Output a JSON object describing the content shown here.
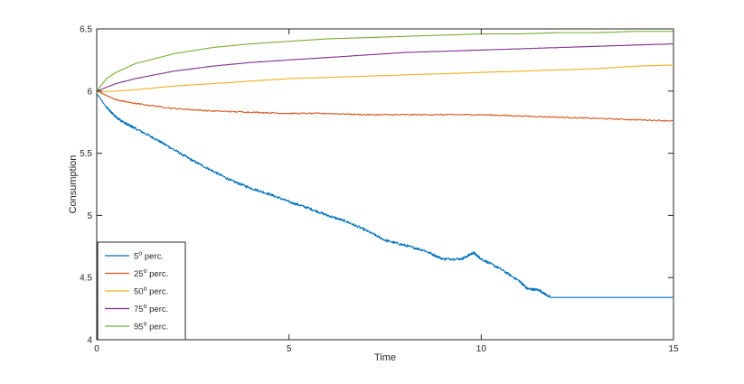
{
  "chart_data": {
    "type": "line",
    "title": "",
    "xlabel": "Time",
    "ylabel": "Consumption",
    "xlim": [
      0,
      15
    ],
    "ylim": [
      4,
      6.5
    ],
    "x_ticks": [
      "0",
      "5",
      "10",
      "15"
    ],
    "y_ticks": [
      "4",
      "4.5",
      "5",
      "5.5",
      "6",
      "6.5"
    ],
    "grid": false,
    "legend_position": "bottom-left",
    "series": [
      {
        "name": "5",
        "name_suffix": " perc.",
        "superscript": "o",
        "color": "#0072BD",
        "x": [
          0,
          0.25,
          0.5,
          0.75,
          1,
          1.5,
          2,
          2.5,
          3,
          3.5,
          4,
          4.5,
          5,
          5.5,
          6,
          6.5,
          7,
          7.5,
          8,
          8.5,
          9,
          9.5,
          9.8,
          10,
          10.5,
          11,
          11.2,
          11.5,
          11.8,
          12,
          13,
          14,
          15
        ],
        "y": [
          5.98,
          5.87,
          5.79,
          5.74,
          5.7,
          5.62,
          5.53,
          5.44,
          5.36,
          5.28,
          5.22,
          5.17,
          5.11,
          5.06,
          5.0,
          4.95,
          4.88,
          4.8,
          4.76,
          4.72,
          4.65,
          4.65,
          4.7,
          4.65,
          4.57,
          4.47,
          4.41,
          4.4,
          4.34,
          4.34,
          4.34,
          4.34,
          4.34
        ],
        "noise": 0.01
      },
      {
        "name": "25",
        "name_suffix": " perc.",
        "superscript": "o",
        "color": "#D95319",
        "x": [
          0,
          0.5,
          1,
          2,
          3,
          4,
          5,
          6,
          7,
          8,
          9,
          10,
          11,
          12,
          13,
          14,
          15
        ],
        "y": [
          6.0,
          5.93,
          5.9,
          5.86,
          5.84,
          5.83,
          5.82,
          5.82,
          5.81,
          5.81,
          5.81,
          5.81,
          5.8,
          5.79,
          5.78,
          5.77,
          5.76
        ],
        "noise": 0.005
      },
      {
        "name": "50",
        "name_suffix": " perc.",
        "superscript": "o",
        "color": "#EDB120",
        "x": [
          0,
          1,
          2,
          3,
          4,
          5,
          6,
          7,
          8,
          9,
          10,
          11,
          12,
          13,
          14,
          15
        ],
        "y": [
          5.99,
          6.01,
          6.04,
          6.06,
          6.08,
          6.1,
          6.11,
          6.12,
          6.13,
          6.14,
          6.15,
          6.16,
          6.17,
          6.18,
          6.2,
          6.21
        ],
        "noise": 0.002
      },
      {
        "name": "75",
        "name_suffix": " perc.",
        "superscript": "o",
        "color": "#7E2F8E",
        "x": [
          0,
          0.5,
          1,
          2,
          3,
          4,
          5,
          6,
          7,
          8,
          9,
          10,
          11,
          12,
          13,
          14,
          15
        ],
        "y": [
          6.0,
          6.06,
          6.1,
          6.16,
          6.2,
          6.23,
          6.25,
          6.27,
          6.29,
          6.31,
          6.32,
          6.33,
          6.34,
          6.35,
          6.36,
          6.37,
          6.38
        ],
        "noise": 0.001
      },
      {
        "name": "95",
        "name_suffix": " perc.",
        "superscript": "o",
        "color": "#77AC30",
        "x": [
          0,
          0.25,
          0.5,
          1,
          2,
          3,
          4,
          5,
          6,
          7,
          8,
          9,
          10,
          11,
          12,
          13,
          14,
          15
        ],
        "y": [
          6.0,
          6.1,
          6.15,
          6.22,
          6.3,
          6.35,
          6.38,
          6.4,
          6.42,
          6.43,
          6.44,
          6.45,
          6.46,
          6.46,
          6.47,
          6.47,
          6.48,
          6.48
        ],
        "noise": 0.0005
      }
    ]
  }
}
